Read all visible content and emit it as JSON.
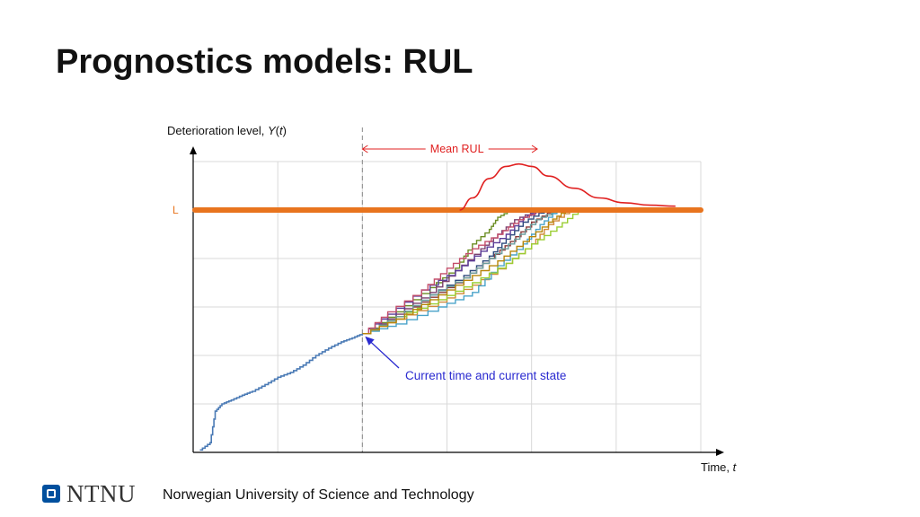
{
  "slide": {
    "title": "Prognostics models: RUL"
  },
  "footer": {
    "logo_text": "NTNU",
    "institution": "Norwegian University of Science and Technology"
  },
  "colors": {
    "threshold": "#e8741e",
    "mean_rul": "#e02020",
    "annotation": "#2a2ad0",
    "history": "#4a7ab5",
    "grid": "#d9d9d9",
    "axis": "#000000"
  },
  "chart_data": {
    "type": "line",
    "ylabel_prefix": "Deterioration level, ",
    "ylabel_var": "Y",
    "ylabel_arg": "t",
    "xlabel_prefix": "Time, ",
    "xlabel_var": "t",
    "xlim": [
      0,
      60
    ],
    "ylim": [
      0,
      60
    ],
    "grid": true,
    "threshold": {
      "label": "L",
      "value": 50
    },
    "current_time": 20,
    "current_state": 24.5,
    "mean_rul_label": "Mean RUL",
    "annotation": "Current time and current state",
    "history": {
      "x": [
        0.8,
        2,
        2.6,
        3.4,
        4.5,
        5.8,
        7,
        8.5,
        10,
        11.5,
        13,
        14.5,
        16,
        17.5,
        18.8,
        20
      ],
      "y": [
        0.5,
        2,
        8.5,
        10,
        10.8,
        11.8,
        12.6,
        14,
        15.5,
        16.5,
        18,
        20,
        21.5,
        22.8,
        23.6,
        24.5
      ]
    },
    "simulated_paths": [
      {
        "color": "#6b8e23",
        "x": [
          20,
          24,
          28,
          31,
          33,
          35,
          36,
          37.5
        ],
        "y": [
          24.5,
          29,
          34,
          38,
          43,
          46,
          48.5,
          50
        ]
      },
      {
        "color": "#7b3f6e",
        "x": [
          20,
          24,
          28,
          31,
          34,
          36,
          38,
          40.5
        ],
        "y": [
          24.5,
          28.5,
          33,
          37.5,
          42,
          45,
          48,
          50
        ]
      },
      {
        "color": "#2e4a7d",
        "x": [
          20,
          24,
          28,
          32,
          35,
          37,
          39,
          41.5
        ],
        "y": [
          24.5,
          28,
          32.5,
          36.5,
          40.5,
          44,
          47.5,
          50
        ]
      },
      {
        "color": "#8b3a3a",
        "x": [
          20,
          24,
          28,
          32,
          35,
          37.5,
          40,
          42.5
        ],
        "y": [
          24.5,
          28,
          32,
          36,
          40,
          43.5,
          47.5,
          50
        ]
      },
      {
        "color": "#d08a3a",
        "x": [
          20,
          24,
          29,
          33,
          37,
          40,
          42,
          44.5
        ],
        "y": [
          24.5,
          27.5,
          31,
          34.5,
          39,
          43,
          47,
          50
        ]
      },
      {
        "color": "#4aa3c9",
        "x": [
          20,
          24,
          29,
          33,
          36,
          39,
          41,
          43
        ],
        "y": [
          24.5,
          26.5,
          30,
          33,
          38.5,
          43,
          47,
          50
        ]
      },
      {
        "color": "#9acd32",
        "x": [
          20,
          24,
          29,
          33,
          37,
          40,
          43,
          45.5
        ],
        "y": [
          24.5,
          28,
          31.5,
          35,
          39,
          43,
          46.5,
          50
        ]
      },
      {
        "color": "#5b3e99",
        "x": [
          20,
          23,
          27,
          31,
          34,
          37,
          39,
          41
        ],
        "y": [
          24.5,
          28.5,
          33.5,
          37.5,
          41.5,
          45,
          48.5,
          50
        ]
      },
      {
        "color": "#6b9e9e",
        "x": [
          20,
          24,
          28,
          32,
          35,
          38,
          40.5,
          43
        ],
        "y": [
          24.5,
          28,
          32.5,
          36,
          40,
          44,
          48,
          50
        ]
      },
      {
        "color": "#c44e6a",
        "x": [
          20,
          23,
          27,
          30,
          33,
          36,
          38.5,
          41
        ],
        "y": [
          24.5,
          29,
          33.5,
          38,
          42,
          45,
          48,
          50
        ]
      },
      {
        "color": "#b8860b",
        "x": [
          20,
          24,
          28,
          32,
          36,
          39,
          42,
          44
        ],
        "y": [
          24.5,
          27.5,
          31.5,
          35.5,
          39.5,
          43.5,
          47.5,
          50
        ]
      }
    ],
    "mean_rul_curve": {
      "x": [
        31.5,
        33,
        35,
        37,
        38.5,
        40,
        42,
        45,
        48,
        51,
        54,
        57
      ],
      "y": [
        50,
        52.5,
        56.5,
        59,
        59.5,
        59,
        57,
        54.5,
        52.5,
        51.5,
        51,
        50.8
      ]
    }
  }
}
